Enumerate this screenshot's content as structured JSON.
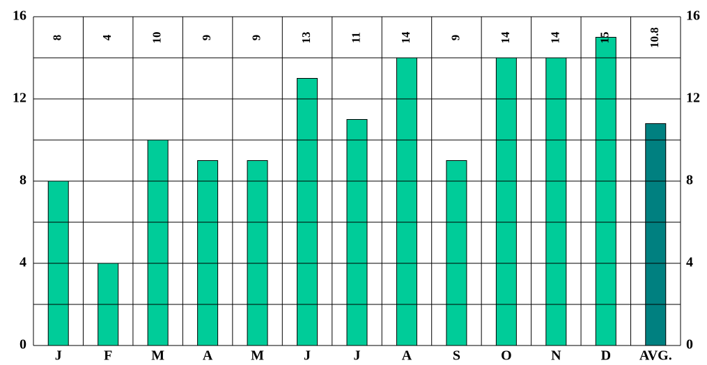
{
  "chart_data": {
    "type": "bar",
    "categories": [
      "J",
      "F",
      "M",
      "A",
      "M",
      "J",
      "J",
      "A",
      "S",
      "O",
      "N",
      "D",
      "AVG."
    ],
    "values": [
      8,
      4,
      10,
      9,
      9,
      13,
      11,
      14,
      9,
      14,
      14,
      15,
      10.8
    ],
    "colors": [
      "#00cc99",
      "#00cc99",
      "#00cc99",
      "#00cc99",
      "#00cc99",
      "#00cc99",
      "#00cc99",
      "#00cc99",
      "#00cc99",
      "#00cc99",
      "#00cc99",
      "#00cc99",
      "#008080"
    ],
    "ylim": [
      0,
      16
    ],
    "yticks": [
      0,
      4,
      8,
      12,
      16
    ],
    "minor_yticks": [
      2,
      6,
      10,
      14
    ],
    "y2lim": [
      0,
      16
    ],
    "y2ticks": [
      0,
      4,
      8,
      12,
      16
    ],
    "grid": true
  }
}
